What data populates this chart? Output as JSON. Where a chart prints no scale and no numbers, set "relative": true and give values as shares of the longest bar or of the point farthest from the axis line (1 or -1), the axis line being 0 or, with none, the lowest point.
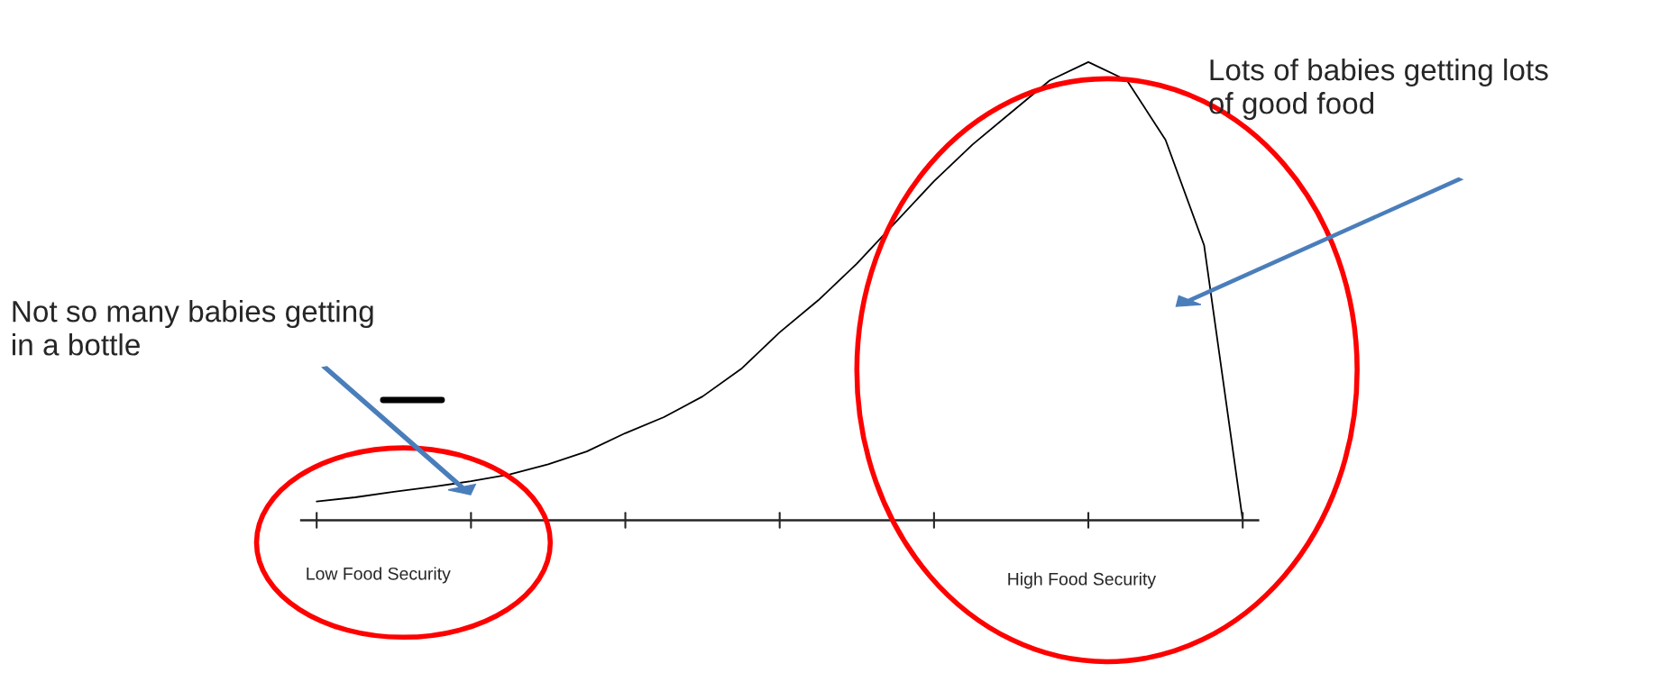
{
  "chart_data": {
    "type": "line",
    "relative": true,
    "color": "#000000",
    "categories": [
      null,
      null,
      null,
      null,
      null,
      null,
      null,
      null,
      null,
      null,
      null,
      null,
      null,
      null,
      null,
      null,
      null,
      null,
      null,
      null,
      null,
      null,
      null,
      null,
      null
    ],
    "values": [
      0.041,
      0.05,
      0.062,
      0.073,
      0.085,
      0.1,
      0.122,
      0.15,
      0.19,
      0.225,
      0.27,
      0.33,
      0.41,
      0.48,
      0.56,
      0.65,
      0.74,
      0.82,
      0.89,
      0.96,
      1.0,
      0.96,
      0.83,
      0.6,
      0
    ],
    "grid": false,
    "legend": false,
    "marker": "none",
    "line_style": "solid",
    "annotations": [
      "Not so many babies getting\nin a bottle",
      "Lots of babies getting lots\nof good food",
      "Low Food Security",
      "High Food Security"
    ]
  }
}
